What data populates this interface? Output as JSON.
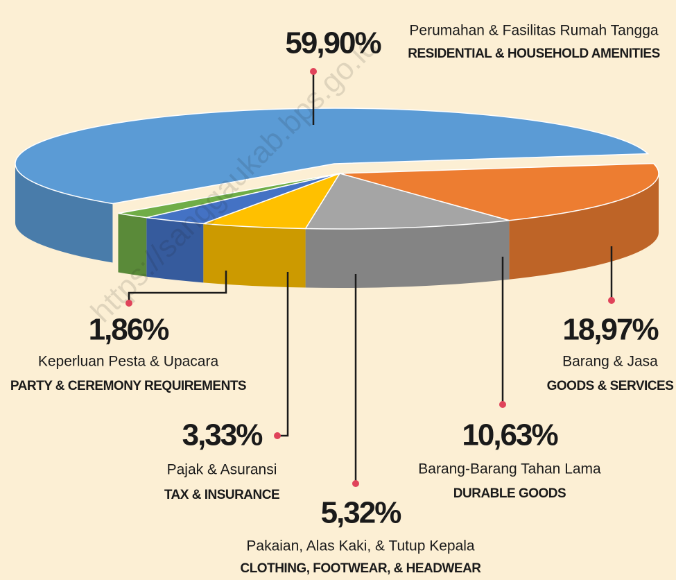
{
  "chart_data": {
    "type": "pie",
    "categories": [
      "Perumahan & Fasilitas Rumah Tangga",
      "Barang & Jasa",
      "Barang-Barang Tahan Lama",
      "Pakaian, Alas Kaki, & Tutup Kepala",
      "Pajak & Asuransi",
      "Keperluan Pesta & Upacara"
    ],
    "categories_en": [
      "RESIDENTIAL & HOUSEHOLD AMENITIES",
      "GOODS & SERVICES",
      "DURABLE GOODS",
      "CLOTHING, FOOTWEAR, & HEADWEAR",
      "TAX & INSURANCE",
      "PARTY & CEREMONY REQUIREMENTS"
    ],
    "values": [
      59.9,
      18.97,
      10.63,
      5.32,
      3.33,
      1.86
    ],
    "value_labels": [
      "59,90%",
      "18,97%",
      "10,63%",
      "5,32%",
      "3,33%",
      "1,86%"
    ],
    "colors": [
      "#5b9bd5",
      "#ed7d31",
      "#a5a5a5",
      "#ffc000",
      "#4472c4",
      "#70ad47"
    ]
  },
  "watermark": "https://sanggaukab.bps.go.id"
}
